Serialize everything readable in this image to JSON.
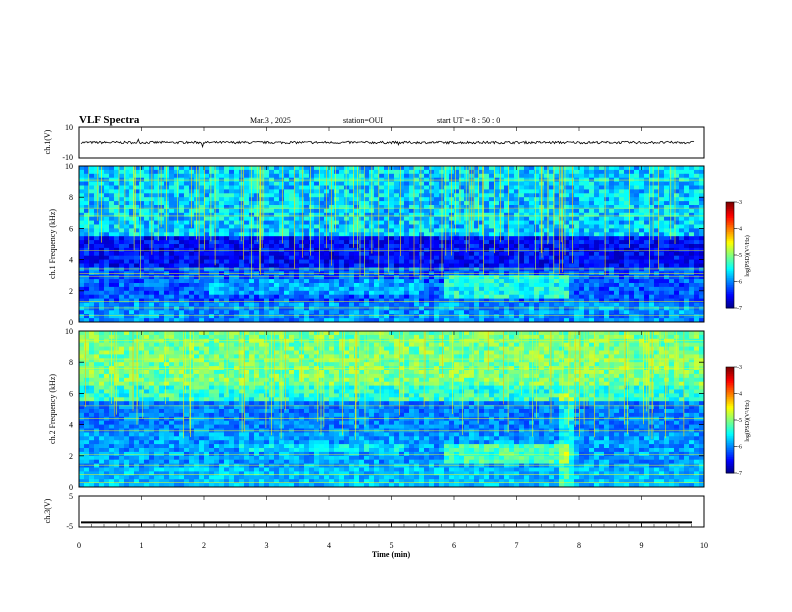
{
  "header": {
    "title": "VLF Spectra",
    "date": "Mar.3 , 2025",
    "station": "station=OUI",
    "start": "start UT = 8 : 50 : 0"
  },
  "chart_data": [
    {
      "type": "line",
      "panel": "ch1-waveform",
      "ylabel": "ch.1(V)",
      "ylim": [
        -10,
        10
      ],
      "y_ticks": [
        "10",
        "-10"
      ],
      "x_range": [
        0,
        10
      ],
      "baseline": 0,
      "line_color": "#000000"
    },
    {
      "type": "heatmap",
      "panel": "ch1-spectrogram",
      "ylabel": "ch.1 Frequency (kHz)",
      "ylim": [
        0,
        10
      ],
      "y_ticks": [
        "0",
        "2",
        "4",
        "6",
        "8",
        "10"
      ],
      "x_range": [
        0,
        10
      ],
      "colorbar": {
        "label": "log(PSD)(V²/Hz)",
        "range": [
          -7,
          -3
        ],
        "ticks": [
          "-3",
          "-4",
          "-5",
          "-6",
          "-7"
        ]
      }
    },
    {
      "type": "heatmap",
      "panel": "ch2-spectrogram",
      "ylabel": "ch.2 Frequency (kHz)",
      "ylim": [
        0,
        10
      ],
      "y_ticks": [
        "0",
        "2",
        "4",
        "6",
        "8",
        "10"
      ],
      "x_range": [
        0,
        10
      ],
      "colorbar": {
        "label": "log(PSD)(V²/Hz)",
        "range": [
          -7,
          -3
        ],
        "ticks": [
          "-3",
          "-4",
          "-5",
          "-6",
          "-7"
        ]
      }
    },
    {
      "type": "line",
      "panel": "ch3-waveform",
      "ylabel": "ch.3(V)",
      "ylim": [
        -5,
        5
      ],
      "y_ticks": [
        "5",
        "-5"
      ],
      "x_range": [
        0,
        10
      ],
      "baseline": -3.5,
      "line_color": "#000000"
    }
  ],
  "x_axis": {
    "label": "Time (min)",
    "ticks": [
      "0",
      "1",
      "2",
      "3",
      "4",
      "5",
      "6",
      "7",
      "8",
      "9",
      "10"
    ]
  },
  "colors": {
    "axis": "#000000",
    "background": "#ffffff"
  }
}
